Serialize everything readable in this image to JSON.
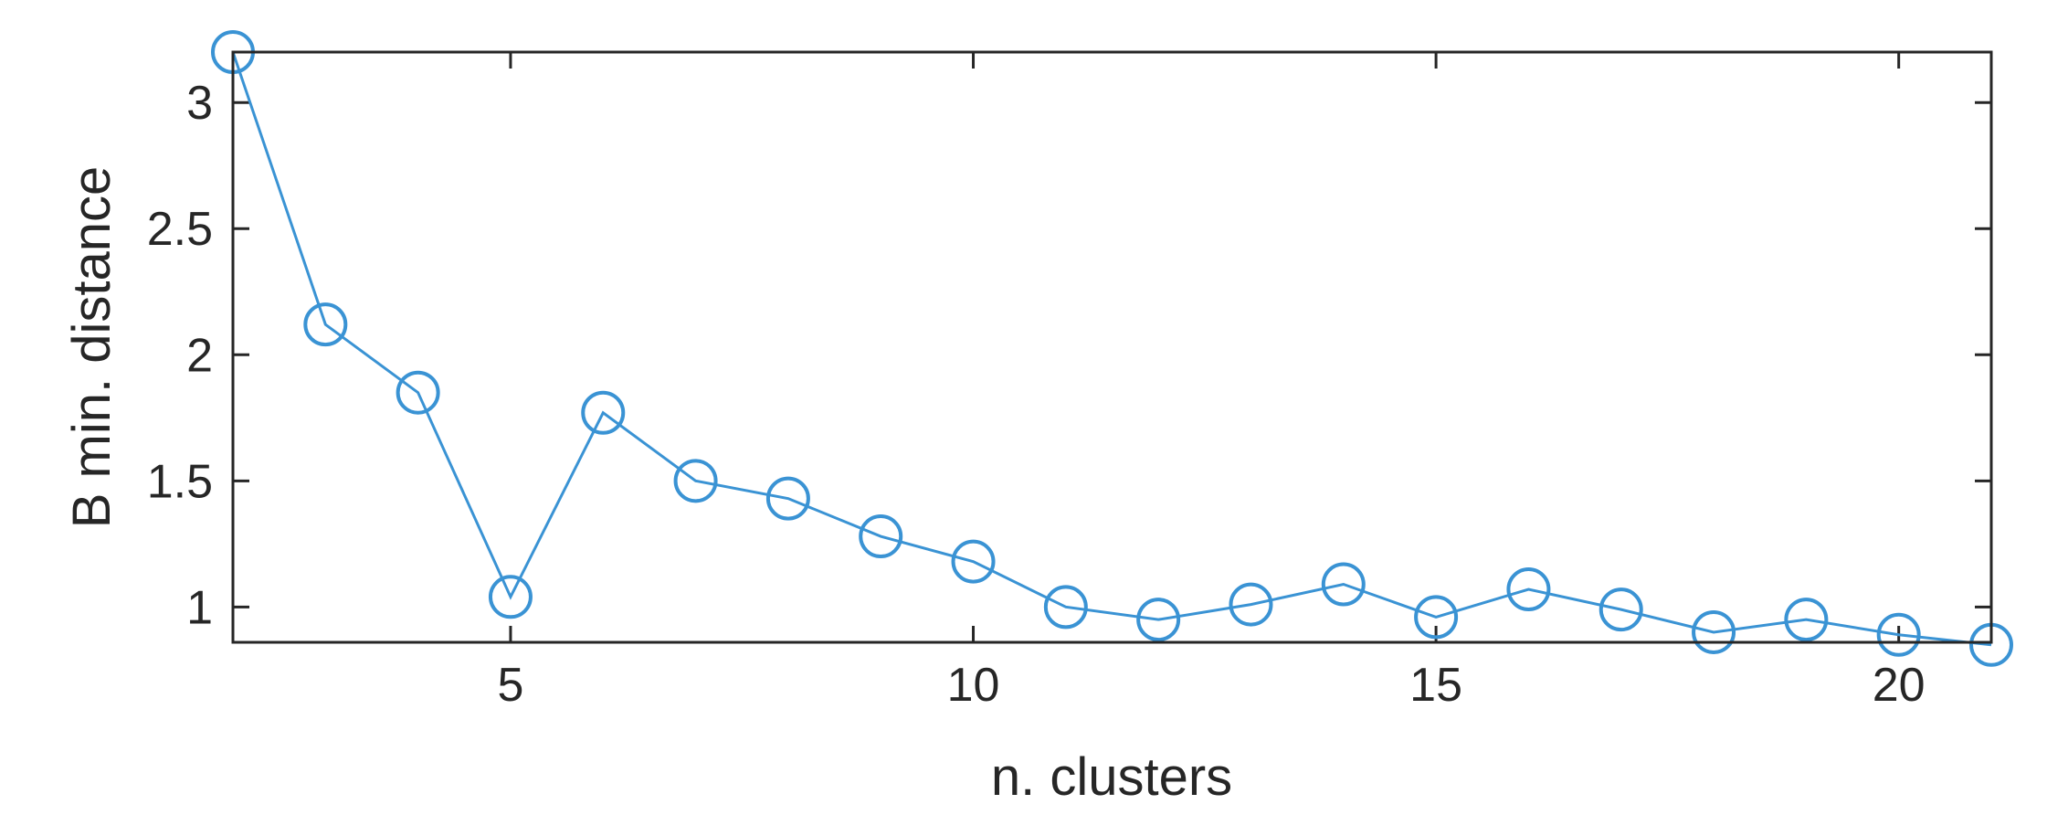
{
  "chart_data": {
    "type": "line",
    "xlabel": "n. clusters",
    "ylabel": "B min. distance",
    "xlim": [
      2,
      21
    ],
    "ylim": [
      0.86,
      3.2
    ],
    "x_ticks": [
      5,
      10,
      15,
      20
    ],
    "y_ticks": [
      1,
      1.5,
      2,
      2.5,
      3
    ],
    "grid": false,
    "colors": {
      "series": "#3a93d4",
      "axes": "#262626"
    },
    "series": [
      {
        "marker": "circle",
        "x": [
          2,
          3,
          4,
          5,
          6,
          7,
          8,
          9,
          10,
          11,
          12,
          13,
          14,
          15,
          16,
          17,
          18,
          19,
          20,
          21
        ],
        "y": [
          3.2,
          2.12,
          1.85,
          1.04,
          1.77,
          1.5,
          1.43,
          1.28,
          1.18,
          1.0,
          0.95,
          1.01,
          1.09,
          0.96,
          1.07,
          0.99,
          0.9,
          0.95,
          0.89,
          0.85
        ]
      }
    ]
  }
}
